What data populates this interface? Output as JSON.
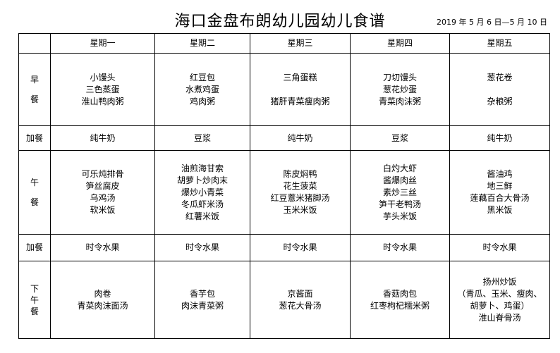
{
  "title": "海口金盘布朗幼儿园幼儿食谱",
  "date_range": "2019 年 5 月 6 日—5 月 10 日",
  "days": [
    "星期一",
    "星期二",
    "星期三",
    "星期四",
    "星期五"
  ],
  "rows": [
    {
      "label": [
        "早",
        "餐"
      ],
      "cells": [
        [
          "小馒头",
          "三色蒸蛋",
          "淮山鸭肉粥"
        ],
        [
          "红豆包",
          "水煮鸡蛋",
          "鸡肉粥"
        ],
        [
          "三角蛋糕",
          "",
          "猪肝青菜瘦肉粥"
        ],
        [
          "刀切馒头",
          "葱花炒蛋",
          "青菜肉沫粥"
        ],
        [
          "葱花卷",
          "",
          "杂粮粥"
        ]
      ]
    },
    {
      "label": [
        "加餐"
      ],
      "cells": [
        [
          "纯牛奶"
        ],
        [
          "豆浆"
        ],
        [
          "纯牛奶"
        ],
        [
          "豆浆"
        ],
        [
          "纯牛奶"
        ]
      ]
    },
    {
      "label": [
        "午",
        "餐"
      ],
      "cells": [
        [
          "可乐炖排骨",
          "笋丝腐皮",
          "乌鸡汤",
          "软米饭"
        ],
        [
          "油煎海甘索",
          "胡萝卜炒肉末",
          "爆炒小青菜",
          "冬瓜虾米汤",
          "红薯米饭"
        ],
        [
          "陈皮焖鸭",
          "花生菠菜",
          "红豆薏米猪脚汤",
          "玉米米饭"
        ],
        [
          "白灼大虾",
          "酱爆肉丝",
          "素炒三丝",
          "笋干老鸭汤",
          "芋头米饭"
        ],
        [
          "酱油鸡",
          "地三鲜",
          "莲藕百合大骨汤",
          "黑米饭"
        ]
      ]
    },
    {
      "label": [
        "加餐"
      ],
      "cells": [
        [
          "时令水果"
        ],
        [
          "时令水果"
        ],
        [
          "时令水果"
        ],
        [
          "时令水果"
        ],
        [
          "时令水果"
        ]
      ]
    },
    {
      "label": [
        "下",
        "午",
        "餐"
      ],
      "cells": [
        [
          "肉卷",
          "青菜肉沫面汤"
        ],
        [
          "香芋包",
          "肉沫青菜粥"
        ],
        [
          "京酱面",
          "葱花大骨汤"
        ],
        [
          "香菇肉包",
          "红枣枸杞糯米粥"
        ],
        [
          "扬州炒饭",
          "（青瓜、玉米、瘦肉、",
          "胡萝卜、鸡蛋）",
          "淮山脊骨汤"
        ]
      ]
    }
  ]
}
